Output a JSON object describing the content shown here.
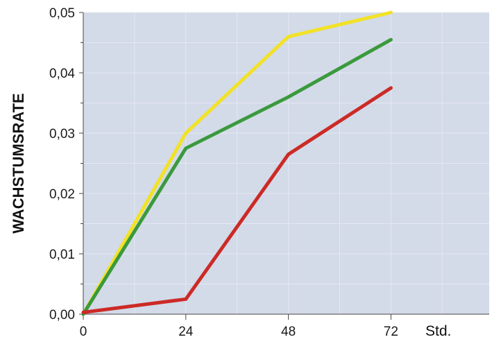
{
  "chart_data": {
    "type": "line",
    "ylabel": "WACHSTUMSRATE",
    "x_unit_label": "Std.",
    "x": [
      0,
      24,
      48,
      72
    ],
    "x_tick_labels": [
      "0",
      "24",
      "48",
      "72"
    ],
    "y_tick_values": [
      0.0,
      0.01,
      0.02,
      0.03,
      0.04,
      0.05
    ],
    "y_tick_labels": [
      "0,00",
      "0,01",
      "0,02",
      "0,03",
      "0,04",
      "0,05"
    ],
    "xlim": [
      0,
      95
    ],
    "ylim": [
      0,
      0.05
    ],
    "grid": true,
    "background_color": "#d3dae8",
    "grid_color": "#e6eaf2",
    "series": [
      {
        "color": "#f2e227",
        "values": [
          0.0,
          0.03,
          0.046,
          0.05
        ]
      },
      {
        "color": "#3a9a3c",
        "values": [
          0.0,
          0.0275,
          0.036,
          0.0455
        ]
      },
      {
        "color": "#cc2a26",
        "values": [
          0.0003,
          0.0025,
          0.0265,
          0.0375
        ]
      }
    ]
  }
}
